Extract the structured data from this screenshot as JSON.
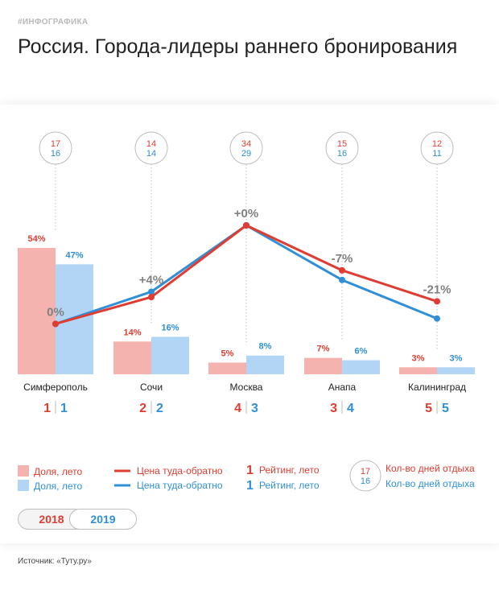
{
  "header": {
    "tag": "#ИНФОГРАФИКА",
    "title": "Россия. Города-лидеры раннего бронирования"
  },
  "source": "Источник: «Туту.ру»",
  "colors": {
    "bar2018": "#f4b3ae",
    "bar2019": "#b3d5f5",
    "red": "#e03c31",
    "blue": "#2f8fd8",
    "gray": "#808080"
  },
  "chart_data": {
    "type": "bar",
    "categories": [
      "Симферополь",
      "Сочи",
      "Москва",
      "Анапа",
      "Калининград"
    ],
    "series": [
      {
        "name": "Доля, лето",
        "year": "2018",
        "type": "bar",
        "values": [
          54,
          14,
          5,
          7,
          3
        ],
        "labels": [
          "54%",
          "14%",
          "5%",
          "7%",
          "3%"
        ]
      },
      {
        "name": "Доля, лето",
        "year": "2019",
        "type": "bar",
        "values": [
          47,
          16,
          8,
          6,
          3
        ],
        "labels": [
          "47%",
          "16%",
          "8%",
          "6%",
          "3%"
        ]
      },
      {
        "name": "Цена туда-обратно",
        "year": "2018",
        "type": "line",
        "values": [
          0.08,
          0.33,
          1.0,
          0.58,
          0.29
        ]
      },
      {
        "name": "Цена туда-обратно",
        "year": "2019",
        "type": "line",
        "values": [
          0.08,
          0.38,
          1.0,
          0.49,
          0.13
        ]
      }
    ],
    "price_change": [
      "0%",
      "+4%",
      "+0%",
      "-7%",
      "-21%"
    ],
    "rating_2018": [
      "1",
      "2",
      "4",
      "3",
      "5"
    ],
    "rating_2019": [
      "1",
      "2",
      "3",
      "4",
      "5"
    ],
    "days_2018": [
      "17",
      "14",
      "34",
      "15",
      "12"
    ],
    "days_2019": [
      "16",
      "14",
      "29",
      "16",
      "11"
    ],
    "bar_scale_max": 54
  },
  "legend": {
    "share_2018": "Доля, лето",
    "share_2019": "Доля, лето",
    "price_2018": "Цена туда-обратно",
    "price_2019": "Цена туда-обратно",
    "rating_num_2018": "1",
    "rating_label_2018": "Рейтинг, лето",
    "rating_num_2019": "1",
    "rating_label_2019": "Рейтинг, лето",
    "days_num_2018": "17",
    "days_num_2019": "16",
    "days_label_2018": "Кол-во дней отдыха",
    "days_label_2019": "Кол-во дней отдыха"
  },
  "toggle": {
    "label_2018": "2018",
    "label_2019": "2019"
  }
}
